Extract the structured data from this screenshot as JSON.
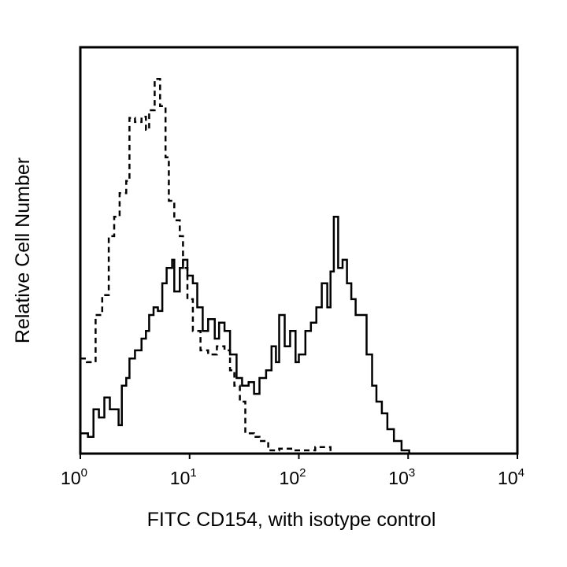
{
  "chart_data": {
    "type": "line",
    "title": "",
    "xlabel": "FITC CD154, with isotype control",
    "ylabel": "Relative Cell Number",
    "x_scale": "log10",
    "xlim": [
      1,
      10000
    ],
    "ylim": [
      0,
      100
    ],
    "grid": false,
    "legend": "none",
    "x_ticks": [
      {
        "base": "10",
        "exp": "0"
      },
      {
        "base": "10",
        "exp": "1"
      },
      {
        "base": "10",
        "exp": "2"
      },
      {
        "base": "10",
        "exp": "3"
      },
      {
        "base": "10",
        "exp": "4"
      }
    ],
    "series": [
      {
        "name": "isotype control",
        "style": "dashed",
        "color": "#000000",
        "x_log10": [
          0.0,
          0.06,
          0.14,
          0.2,
          0.26,
          0.31,
          0.36,
          0.42,
          0.45,
          0.5,
          0.56,
          0.6,
          0.63,
          0.68,
          0.73,
          0.78,
          0.81,
          0.86,
          0.91,
          0.94,
          0.98,
          1.03,
          1.1,
          1.17,
          1.25,
          1.32,
          1.37,
          1.41,
          1.46,
          1.51,
          1.59,
          1.64,
          1.72,
          1.82,
          1.93,
          2.15,
          2.29,
          4.0
        ],
        "values": [
          23.4,
          22.5,
          34.1,
          39.0,
          53.5,
          58.3,
          64.1,
          67.1,
          82.6,
          81.6,
          82.9,
          79.7,
          84.5,
          92.2,
          85.5,
          72.9,
          62.2,
          57.4,
          53.5,
          45.7,
          38.0,
          30.2,
          25.4,
          24.4,
          26.4,
          25.4,
          20.5,
          16.7,
          12.8,
          5.0,
          4.1,
          3.1,
          0.8,
          1.2,
          0.8,
          1.6,
          0,
          0
        ]
      },
      {
        "name": "FITC CD154",
        "style": "solid",
        "color": "#000000",
        "x_log10": [
          0.0,
          0.07,
          0.12,
          0.17,
          0.22,
          0.27,
          0.35,
          0.38,
          0.42,
          0.45,
          0.5,
          0.56,
          0.6,
          0.63,
          0.67,
          0.71,
          0.75,
          0.79,
          0.84,
          0.86,
          0.91,
          0.94,
          0.98,
          1.03,
          1.07,
          1.12,
          1.17,
          1.23,
          1.27,
          1.32,
          1.37,
          1.43,
          1.48,
          1.54,
          1.59,
          1.64,
          1.7,
          1.75,
          1.79,
          1.82,
          1.87,
          1.92,
          1.97,
          2.0,
          2.06,
          2.11,
          2.16,
          2.21,
          2.26,
          2.29,
          2.32,
          2.36,
          2.4,
          2.44,
          2.48,
          2.52,
          2.57,
          2.62,
          2.67,
          2.71,
          2.76,
          2.81,
          2.87,
          2.94,
          3.01,
          4.0
        ],
        "values": [
          5.0,
          4.1,
          10.9,
          8.9,
          13.8,
          10.9,
          7.0,
          16.7,
          18.6,
          23.4,
          25.4,
          28.3,
          30.2,
          34.1,
          36.0,
          35.1,
          41.9,
          45.7,
          47.7,
          39.9,
          45.7,
          47.7,
          43.8,
          41.9,
          36.0,
          30.2,
          33.1,
          28.3,
          32.2,
          30.2,
          24.4,
          18.6,
          16.7,
          17.6,
          14.7,
          18.6,
          20.5,
          26.4,
          22.5,
          34.1,
          26.4,
          30.2,
          22.5,
          24.4,
          30.2,
          32.2,
          36.0,
          41.9,
          36.0,
          44.8,
          58.3,
          45.7,
          47.7,
          41.9,
          38.0,
          34.1,
          34.1,
          24.4,
          16.7,
          12.8,
          9.9,
          6.0,
          3.1,
          0.8,
          0,
          0
        ]
      }
    ]
  }
}
